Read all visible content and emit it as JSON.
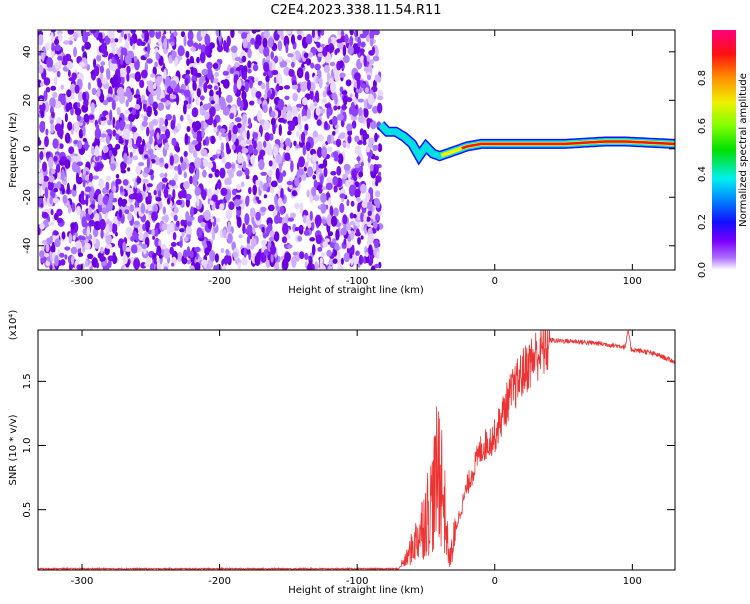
{
  "chart_data": [
    {
      "type": "heatmap",
      "title": "C2E4.2023.338.11.54.R11",
      "xlabel": "Height of straight line (km)",
      "ylabel": "Frequency (Hz)",
      "xlim": [
        -332,
        131
      ],
      "ylim": [
        -50,
        49
      ],
      "xticks": [
        -300,
        -200,
        -100,
        0,
        100
      ],
      "yticks": [
        -40,
        -20,
        0,
        20,
        40
      ],
      "colorbar": {
        "label": "Normalized spectral amplitude",
        "range": [
          0,
          1
        ],
        "ticks": [
          "0.0",
          "0.2",
          "0.4",
          "0.6",
          "0.8"
        ]
      },
      "noise_region_end": -83,
      "ridge": {
        "x": [
          -83,
          -78,
          -72,
          -66,
          -60,
          -55,
          -50,
          -45,
          -40,
          -30,
          -20,
          -10,
          0,
          50,
          80,
          95,
          131
        ],
        "freq": [
          10,
          7,
          7,
          5,
          2,
          -3,
          1,
          -2,
          -3,
          -1,
          1,
          2,
          2,
          2,
          3,
          3,
          2
        ]
      }
    },
    {
      "type": "line",
      "xlabel": "Height of straight line (km)",
      "ylabel": "SNR (10 * v/v)",
      "yscale_label": "(x10⁴)",
      "xlim": [
        -332,
        131
      ],
      "ylim": [
        0.03,
        1.9
      ],
      "xticks": [
        -300,
        -200,
        -100,
        0,
        100
      ],
      "yticks": [
        "0.5",
        "1.0",
        "1.5"
      ],
      "ytick_values": [
        0.5,
        1.0,
        1.5
      ],
      "color": "#ee3333",
      "x": [
        -332,
        -70,
        -65,
        -55,
        -45,
        -40,
        -36,
        -33,
        -30,
        -20,
        -10,
        0,
        10,
        20,
        30,
        40,
        60,
        80,
        95,
        97,
        99,
        110,
        120,
        131
      ],
      "y": [
        0.04,
        0.04,
        0.1,
        0.4,
        0.8,
        1.2,
        0.6,
        0.1,
        0.3,
        0.7,
        1.0,
        1.1,
        1.4,
        1.6,
        1.75,
        1.82,
        1.81,
        1.79,
        1.77,
        1.9,
        1.75,
        1.73,
        1.7,
        1.65
      ]
    }
  ]
}
